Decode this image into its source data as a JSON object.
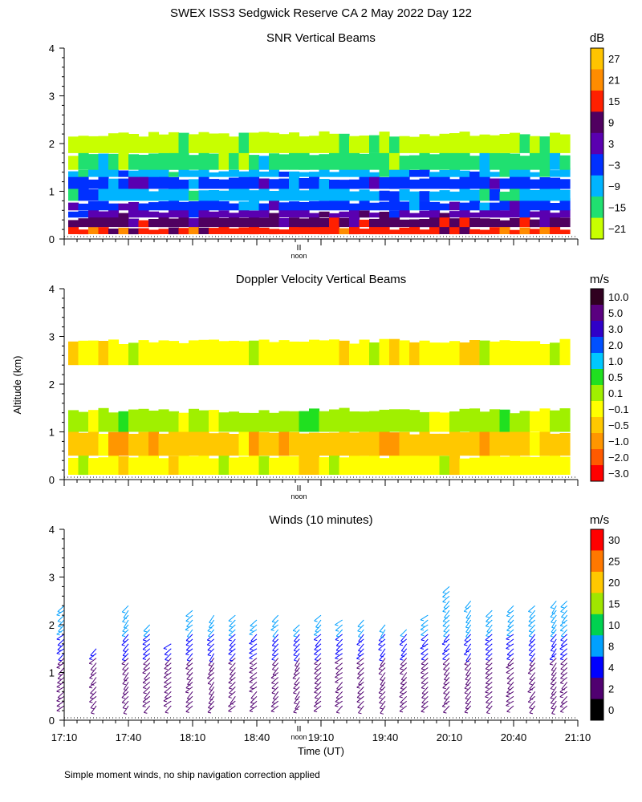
{
  "figure": {
    "title": "SWEX ISS3 Sedgwick Reserve CA   2 May 2022 Day 122",
    "ylabel": "Altitude (km)",
    "xlabel": "Time (UT)",
    "footnote": "Simple moment winds, no ship navigation correction applied",
    "noon_label": "noon"
  },
  "chart_data": [
    {
      "type": "heatmap",
      "title": "SNR Vertical Beams",
      "colorbar_unit": "dB",
      "colorbar_labels": [
        "27",
        "21",
        "15",
        "9",
        "3",
        "−3",
        "−9",
        "−15",
        "−21"
      ],
      "colors": [
        "#ffc400",
        "#ff8c00",
        "#ff2000",
        "#500060",
        "#5a00b0",
        "#0030ff",
        "#00b4ff",
        "#20e070",
        "#c8ff00"
      ],
      "yticks": [
        "0",
        "1",
        "2",
        "3",
        "4"
      ],
      "ylim": [
        0,
        4
      ],
      "x_range": [
        "17:10",
        "21:10"
      ],
      "layers": [
        {
          "bottom": 0.1,
          "top": 0.25,
          "level": 2
        },
        {
          "bottom": 0.25,
          "top": 0.45,
          "level": 3
        },
        {
          "bottom": 0.45,
          "top": 0.6,
          "level": 4
        },
        {
          "bottom": 0.6,
          "top": 0.8,
          "level": 5
        },
        {
          "bottom": 0.8,
          "top": 1.05,
          "level": 6
        },
        {
          "bottom": 1.05,
          "top": 1.3,
          "level": 5
        },
        {
          "bottom": 1.3,
          "top": 1.45,
          "level": 6
        },
        {
          "bottom": 1.45,
          "top": 1.8,
          "level": 7
        },
        {
          "bottom": 1.8,
          "top": 2.2,
          "level": 8
        }
      ]
    },
    {
      "type": "heatmap",
      "title": "Doppler Velocity Vertical Beams",
      "colorbar_unit": "m/s",
      "colorbar_labels": [
        "10.0",
        "5.0",
        "3.0",
        "2.0",
        "1.0",
        "0.5",
        "0.1",
        "−0.1",
        "−0.5",
        "−1.0",
        "−2.0",
        "−3.0"
      ],
      "colors": [
        "#300020",
        "#5a0080",
        "#3000c8",
        "#0050ff",
        "#00c8ff",
        "#20e020",
        "#a0f000",
        "#ffff00",
        "#ffc800",
        "#ff9600",
        "#ff5a00",
        "#ff0000"
      ],
      "yticks": [
        "0",
        "1",
        "2",
        "3",
        "4"
      ],
      "ylim": [
        0,
        4
      ],
      "x_range": [
        "17:10",
        "21:10"
      ],
      "layers": [
        {
          "bottom": 0.1,
          "top": 0.5,
          "level": 7
        },
        {
          "bottom": 0.5,
          "top": 1.0,
          "level": 8
        },
        {
          "bottom": 1.0,
          "top": 1.45,
          "level": 6
        },
        {
          "bottom": 2.4,
          "top": 2.9,
          "level": 7
        }
      ]
    },
    {
      "type": "scatter",
      "title": "Winds (10 minutes)",
      "colorbar_unit": "m/s",
      "colorbar_labels": [
        "30",
        "25",
        "20",
        "15",
        "10",
        "8",
        "4",
        "2",
        "0"
      ],
      "colors": [
        "#ff0000",
        "#ff7800",
        "#ffc800",
        "#a0e600",
        "#00d250",
        "#00a0ff",
        "#0000ff",
        "#500070",
        "#000000"
      ],
      "yticks": [
        "0",
        "1",
        "2",
        "3",
        "4"
      ],
      "ylim": [
        0,
        4
      ],
      "xticks": [
        "17:10",
        "17:40",
        "18:10",
        "18:40",
        "19:10",
        "19:40",
        "20:10",
        "20:40",
        "21:10"
      ],
      "profiles": [
        {
          "time": "17:10",
          "top": 2.4,
          "dir": 230
        },
        {
          "time": "17:25",
          "top": 1.5,
          "dir": 225
        },
        {
          "time": "17:40",
          "top": 2.4,
          "dir": 220
        },
        {
          "time": "17:50",
          "top": 2.0,
          "dir": 225
        },
        {
          "time": "18:00",
          "top": 1.6,
          "dir": 230
        },
        {
          "time": "18:10",
          "top": 2.3,
          "dir": 225
        },
        {
          "time": "18:20",
          "top": 2.2,
          "dir": 220
        },
        {
          "time": "18:30",
          "top": 2.2,
          "dir": 225
        },
        {
          "time": "18:40",
          "top": 2.1,
          "dir": 230
        },
        {
          "time": "18:50",
          "top": 2.2,
          "dir": 225
        },
        {
          "time": "19:00",
          "top": 2.0,
          "dir": 220
        },
        {
          "time": "19:10",
          "top": 2.2,
          "dir": 225
        },
        {
          "time": "19:20",
          "top": 2.1,
          "dir": 230
        },
        {
          "time": "19:30",
          "top": 2.1,
          "dir": 225
        },
        {
          "time": "19:40",
          "top": 2.0,
          "dir": 220
        },
        {
          "time": "19:50",
          "top": 1.9,
          "dir": 225
        },
        {
          "time": "20:00",
          "top": 2.2,
          "dir": 230
        },
        {
          "time": "20:10",
          "top": 2.8,
          "dir": 225
        },
        {
          "time": "20:20",
          "top": 2.5,
          "dir": 220
        },
        {
          "time": "20:30",
          "top": 2.3,
          "dir": 225
        },
        {
          "time": "20:40",
          "top": 2.4,
          "dir": 230
        },
        {
          "time": "20:50",
          "top": 2.4,
          "dir": 225
        },
        {
          "time": "21:00",
          "top": 2.5,
          "dir": 220
        },
        {
          "time": "21:05",
          "top": 2.5,
          "dir": 225
        }
      ]
    }
  ]
}
